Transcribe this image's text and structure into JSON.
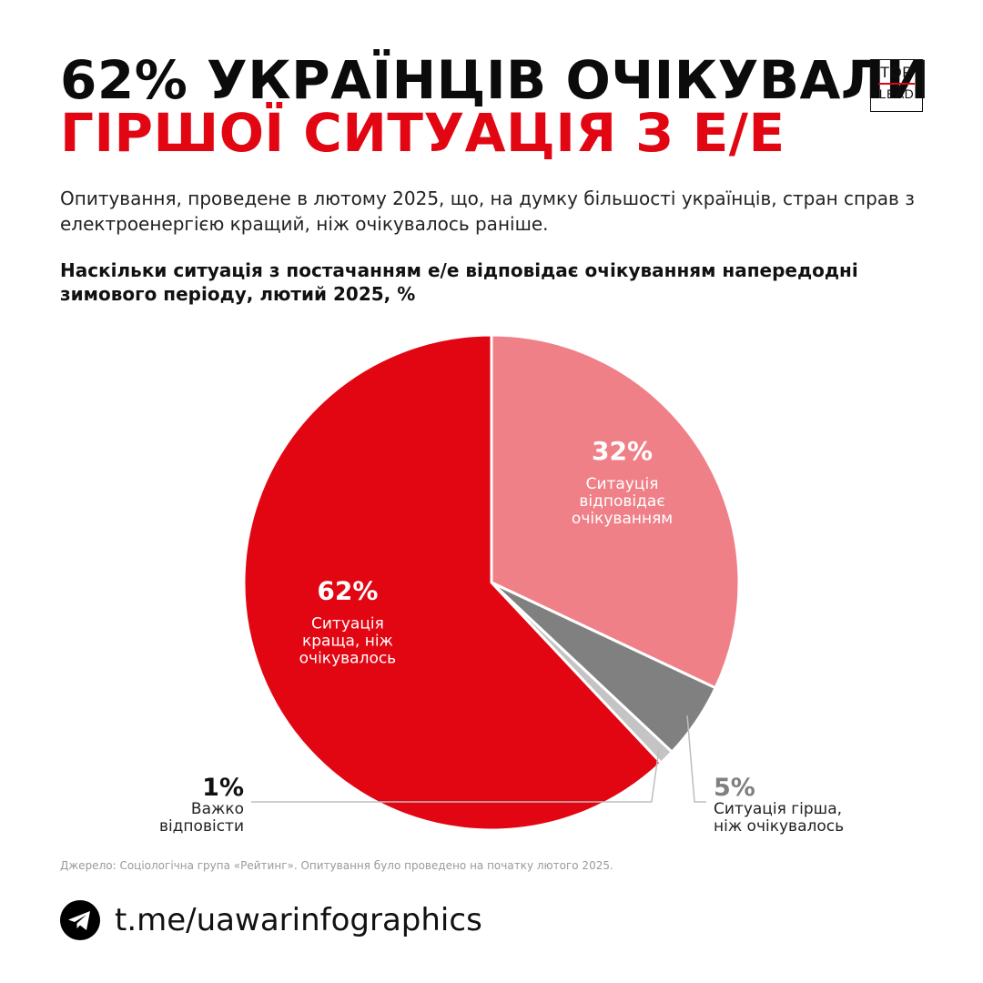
{
  "header": {
    "title_line1": "62% УКРАЇНЦІВ ОЧІКУВАЛИ",
    "title_line2": "ГІРШОЇ СИТУАЦІЯ З Е/Е",
    "logo_top": "TOP",
    "logo_bottom": "LEAD"
  },
  "subtitle": "Опитування, проведене в лютому 2025, що, на думку більшості українців, стран справ з електроенергією кращий, ніж очікувалось раніше.",
  "chart_data": {
    "type": "pie",
    "title": "Наскільки ситуація з постачанням е/е відповідає очікуванням напередодні зимового періоду, лютий 2025, %",
    "unit": "%",
    "slices": [
      {
        "label_lines": [
          "Ситуація",
          "краща, ніж",
          "очікувалось"
        ],
        "value": 62,
        "display": "62%",
        "color": "#e20613"
      },
      {
        "label_lines": [
          "Ситауція",
          "відповідає",
          "очікуванням"
        ],
        "value": 32,
        "display": "32%",
        "color": "#f08088"
      },
      {
        "label_lines": [
          "Ситуація гірша,",
          "ніж очікувалось"
        ],
        "value": 5,
        "display": "5%",
        "color": "#808080"
      },
      {
        "label_lines": [
          "Важко",
          "відповісти"
        ],
        "value": 1,
        "display": "1%",
        "color": "#c4c4c4"
      }
    ]
  },
  "footer": {
    "source": "Джерело: Соціологічна група «Рейтинг». Опитування було проведено на початку лютого 2025.",
    "telegram_icon": "telegram-icon",
    "link": "t.me/uawarinfographics"
  }
}
